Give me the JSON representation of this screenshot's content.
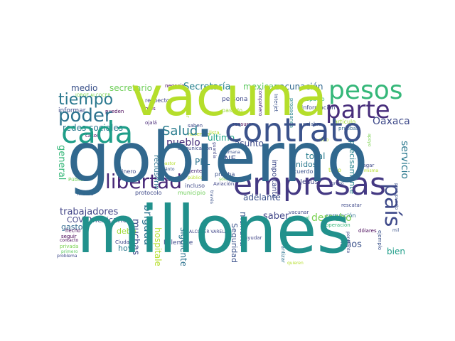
{
  "words": [
    {
      "id": "vacuna",
      "text": "vacuna",
      "color": "#b5de2b"
    },
    {
      "id": "gobierno",
      "text": "gobierno",
      "color": "#31688e"
    },
    {
      "id": "millones",
      "text": "millones",
      "color": "#21918c"
    },
    {
      "id": "pesos",
      "text": "pesos",
      "color": "#35b779"
    },
    {
      "id": "parte",
      "text": "parte",
      "color": "#472d7b"
    },
    {
      "id": "contrato",
      "text": "contrato",
      "color": "#3b528b"
    },
    {
      "id": "cada",
      "text": "cada",
      "color": "#1f9e89"
    },
    {
      "id": "empresas",
      "text": "empresas",
      "color": "#443983"
    },
    {
      "id": "libertad",
      "text": "libertad",
      "color": "#482878"
    },
    {
      "id": "poder",
      "text": "poder",
      "color": "#2c728e"
    },
    {
      "id": "tiempo",
      "text": "tiempo",
      "color": "#2a788e"
    },
    {
      "id": "pais",
      "text": "país",
      "color": "#3e4989"
    },
    {
      "id": "salud",
      "text": "Salud",
      "color": "#287c8e"
    },
    {
      "id": "oaxaca",
      "text": "Oaxaca",
      "color": "#3e4989"
    },
    {
      "id": "secretaria",
      "text": "Secretaría",
      "color": "#26828e"
    },
    {
      "id": "mexicana",
      "text": "mexicana",
      "color": "#5ec962"
    },
    {
      "id": "vacunacion",
      "text": "vacunación",
      "color": "#31688e"
    },
    {
      "id": "medio",
      "text": "medio",
      "color": "#3b528b"
    },
    {
      "id": "secretario",
      "text": "secretario",
      "color": "#6ece58"
    },
    {
      "id": "trabajadores",
      "text": "trabajadores",
      "color": "#414487"
    },
    {
      "id": "brigada",
      "text": "brigada",
      "color": "#2c728e"
    },
    {
      "id": "pueblo",
      "text": "pueblo",
      "color": "#472d7b"
    },
    {
      "id": "servicio",
      "text": "servicio",
      "color": "#2a788e"
    },
    {
      "id": "precisamente",
      "text": "precisamente",
      "color": "#25848e"
    },
    {
      "id": "derecho",
      "text": "derecho",
      "color": "#7ad151"
    },
    {
      "id": "general",
      "text": "general",
      "color": "#35b779"
    },
    {
      "id": "adelante",
      "text": "adelante",
      "color": "#3b528b"
    },
    {
      "id": "manana",
      "text": "mañana",
      "color": "#39568c"
    },
    {
      "id": "muchas",
      "text": "muchas",
      "color": "#3e4989"
    },
    {
      "id": "hospitales",
      "text": "hospitales",
      "color": "#b5de2b"
    },
    {
      "id": "redes_sociales",
      "text": "redes sociales",
      "color": "#2a788e"
    },
    {
      "id": "anos",
      "text": "años",
      "color": "#3b528b"
    },
    {
      "id": "bien",
      "text": "bien",
      "color": "#1f9e89"
    },
    {
      "id": "saber",
      "text": "saber",
      "color": "#404688"
    },
    {
      "id": "asunto",
      "text": "asunto",
      "color": "#3e4989"
    },
    {
      "id": "ultimo",
      "text": "último",
      "color": "#20a386"
    },
    {
      "id": "ppl",
      "text": "PPL",
      "color": "#2c728e"
    },
    {
      "id": "ine",
      "text": "INE",
      "color": "#3b528b"
    },
    {
      "id": "total",
      "text": "total",
      "color": "#287c8e"
    },
    {
      "id": "unidos",
      "text": "Unidos",
      "color": "#2a788e"
    },
    {
      "id": "jesus",
      "text": "Jesús",
      "color": "#414487"
    },
    {
      "id": "covid",
      "text": "COVID",
      "color": "#414487"
    },
    {
      "id": "mexicano",
      "text": "mexicano",
      "color": "#3b528b"
    },
    {
      "id": "gasto",
      "text": "gasto",
      "color": "#31688e"
    },
    {
      "id": "debe",
      "text": "debe",
      "color": "#a0da39"
    },
    {
      "id": "hoy",
      "text": "hoy",
      "color": "#2a788e"
    },
    {
      "id": "palenque",
      "text": "Palenque",
      "color": "#3e4989"
    },
    {
      "id": "siguiente",
      "text": "siguiente",
      "color": "#2c728e"
    },
    {
      "id": "seguridad",
      "text": "Seguridad",
      "color": "#3b528b"
    },
    {
      "id": "reclusorio",
      "text": "reclusorio",
      "color": "#2c728e"
    },
    {
      "id": "importante",
      "text": "importante",
      "color": "#3e4989"
    },
    {
      "id": "informar",
      "text": "informar",
      "color": "#3e4989"
    },
    {
      "id": "jorge_alcocer",
      "text": "JORGE ALCOCER",
      "color": "#7ad151"
    },
    {
      "id": "respecto",
      "text": "respecto",
      "color": "#414487"
    },
    {
      "id": "persona",
      "text": "persona",
      "color": "#3e4989"
    },
    {
      "id": "negocio",
      "text": "negocio",
      "color": "#440154"
    },
    {
      "id": "particular",
      "text": "particular",
      "color": "#b5de2b"
    },
    {
      "id": "pasado",
      "text": "pasado",
      "color": "#a0da39"
    },
    {
      "id": "companero",
      "text": "compañero",
      "color": "#482878"
    },
    {
      "id": "interjet",
      "text": "Interjet",
      "color": "#3b528b"
    },
    {
      "id": "propaganda",
      "text": "propaganda",
      "color": "#25848e"
    },
    {
      "id": "espacio",
      "text": "espacio",
      "color": "#35b779"
    },
    {
      "id": "informacion",
      "text": "información",
      "color": "#3e4989"
    },
    {
      "id": "articulo",
      "text": "artículo",
      "color": "#a0da39"
    },
    {
      "id": "pruebas",
      "text": "pruebas",
      "color": "#31688e"
    },
    {
      "id": "mes",
      "text": "mes",
      "color": "#440154"
    },
    {
      "id": "pueden",
      "text": "pueden",
      "color": "#440154"
    },
    {
      "id": "ojala",
      "text": "ojalá",
      "color": "#482878"
    },
    {
      "id": "saben",
      "text": "saben",
      "color": "#3e4989"
    },
    {
      "id": "hacemos",
      "text": "hacemos",
      "color": "#b5de2b"
    },
    {
      "id": "censura",
      "text": "censura",
      "color": "#440154"
    },
    {
      "id": "lista",
      "text": "lista",
      "color": "#b5de2b"
    },
    {
      "id": "palabra",
      "text": "palabra",
      "color": "#3b528b"
    },
    {
      "id": "casos",
      "text": "casos",
      "color": "#440154"
    },
    {
      "id": "dinero",
      "text": "dinero",
      "color": "#3e4989"
    },
    {
      "id": "comunicacion",
      "text": "comunicación",
      "color": "#3e4989"
    },
    {
      "id": "semana",
      "text": "semana",
      "color": "#3b528b"
    },
    {
      "id": "gente",
      "text": "gente",
      "color": "#482878"
    },
    {
      "id": "ruta",
      "text": "ruta",
      "color": "#440154"
    },
    {
      "id": "incluso",
      "text": "incluso",
      "color": "#3e4989"
    },
    {
      "id": "prueba",
      "text": "prueba",
      "color": "#3b528b"
    },
    {
      "id": "aviacion",
      "text": "Aviación",
      "color": "#404688"
    },
    {
      "id": "solo",
      "text": "sólo",
      "color": "#7ad151"
    },
    {
      "id": "protocolo",
      "text": "protocolo",
      "color": "#3e4989"
    },
    {
      "id": "municipio",
      "text": "municipio",
      "color": "#6ece58"
    },
    {
      "id": "mismo",
      "text": "mismo",
      "color": "#3e4989"
    },
    {
      "id": "publica",
      "text": "Pública",
      "color": "#6ece58"
    },
    {
      "id": "hecho",
      "text": "hecho",
      "color": "#440154"
    },
    {
      "id": "seguir",
      "text": "seguir",
      "color": "#440154"
    },
    {
      "id": "contacto",
      "text": "contacto",
      "color": "#440154"
    },
    {
      "id": "privada",
      "text": "privada",
      "color": "#7ad151"
    },
    {
      "id": "primero",
      "text": "primero",
      "color": "#5ec962"
    },
    {
      "id": "problema",
      "text": "problema",
      "color": "#3e4989"
    },
    {
      "id": "ciudad",
      "text": "Ciudad",
      "color": "#404688"
    },
    {
      "id": "alcocer",
      "text": "ALCOCER VARELA",
      "color": "#404688"
    },
    {
      "id": "ayudar",
      "text": "ayudar",
      "color": "#404688"
    },
    {
      "id": "garantizar",
      "text": "garantizar",
      "color": "#2c728e"
    },
    {
      "id": "nacional",
      "text": "nacional",
      "color": "#35b779"
    },
    {
      "id": "vacunar",
      "text": "vacunar",
      "color": "#3e4989"
    },
    {
      "id": "operacion",
      "text": "operación",
      "color": "#35b779"
    },
    {
      "id": "corrupcion",
      "text": "corrupción",
      "color": "#2c728e"
    },
    {
      "id": "rescatar",
      "text": "rescatar",
      "color": "#3e4989"
    },
    {
      "id": "dolares",
      "text": "dólares",
      "color": "#440154"
    },
    {
      "id": "pendiente",
      "text": "pendiente",
      "color": "#3e4989"
    },
    {
      "id": "ejemplo",
      "text": "ejemplo",
      "color": "#3b528b"
    },
    {
      "id": "creo",
      "text": "creo",
      "color": "#3e4989"
    },
    {
      "id": "pagar",
      "text": "pagar",
      "color": "#3e4989"
    },
    {
      "id": "misma",
      "text": "misma",
      "color": "#b5de2b"
    },
    {
      "id": "grupo",
      "text": "grupo",
      "color": "#3e4989"
    },
    {
      "id": "todo",
      "text": "todo",
      "color": "#b5de2b"
    },
    {
      "id": "acuerdo",
      "text": "acuerdo",
      "color": "#3b528b"
    },
    {
      "id": "pastor",
      "text": "pastor",
      "color": "#b5de2b"
    },
    {
      "id": "cuanto",
      "text": "Cuánto",
      "color": "#3b528b"
    },
    {
      "id": "publico",
      "text": "público",
      "color": "#b5de2b"
    },
    {
      "id": "presupuesto",
      "text": "presupuesto",
      "color": "#3b528b"
    },
    {
      "id": "mil",
      "text": "mil",
      "color": "#3b528b"
    },
    {
      "id": "dia",
      "text": "día",
      "color": "#6ece58"
    },
    {
      "id": "sino",
      "text": "sino",
      "color": "#b5de2b"
    },
    {
      "id": "apoyo",
      "text": "apoyo",
      "color": "#7ad151"
    },
    {
      "id": "traves",
      "text": "través",
      "color": "#3b528b"
    },
    {
      "id": "quieren",
      "text": "quieren",
      "color": "#b5de2b"
    },
    {
      "id": "guardia",
      "text": "guardia",
      "color": "#404688"
    }
  ]
}
